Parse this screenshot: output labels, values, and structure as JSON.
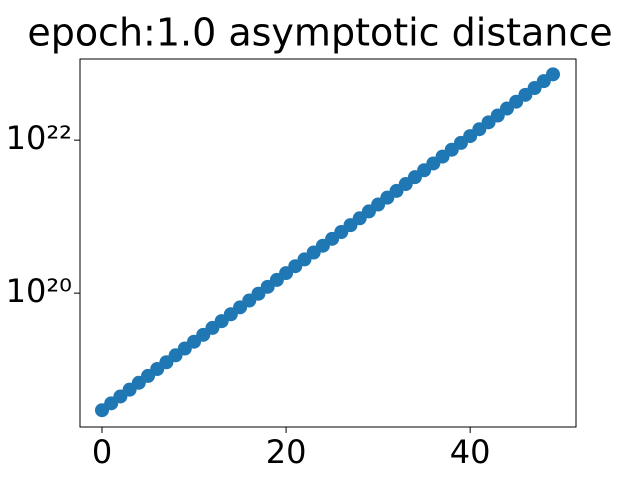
{
  "chart_data": {
    "type": "scatter",
    "title": "epoch:1.0 asymptotic distance",
    "x": [
      0,
      1,
      2,
      3,
      4,
      5,
      6,
      7,
      8,
      9,
      10,
      11,
      12,
      13,
      14,
      15,
      16,
      17,
      18,
      19,
      20,
      21,
      22,
      23,
      24,
      25,
      26,
      27,
      28,
      29,
      30,
      31,
      32,
      33,
      34,
      35,
      36,
      37,
      38,
      39,
      40,
      41,
      42,
      43,
      44,
      45,
      46,
      47,
      48,
      49
    ],
    "series": [
      {
        "name": "distance",
        "color": "#1f77b4",
        "values": [
          2.95e+18,
          3.63e+18,
          4.46e+18,
          5.48e+18,
          6.74e+18,
          8.28e+18,
          1.02e+19,
          1.25e+19,
          1.54e+19,
          1.89e+19,
          2.32e+19,
          2.85e+19,
          3.51e+19,
          4.31e+19,
          5.3e+19,
          6.52e+19,
          8.01e+19,
          9.84e+19,
          1.21e+20,
          1.49e+20,
          1.83e+20,
          2.25e+20,
          2.76e+20,
          3.4e+20,
          4.17e+20,
          5.13e+20,
          6.3e+20,
          7.75e+20,
          9.52e+20,
          1.17e+21,
          1.44e+21,
          1.77e+21,
          2.17e+21,
          2.67e+21,
          3.28e+21,
          4.04e+21,
          4.96e+21,
          6.1e+21,
          7.5e+21,
          9.21e+21,
          1.13e+22,
          1.39e+22,
          1.71e+22,
          2.1e+22,
          2.59e+22,
          3.18e+22,
          3.91e+22,
          4.8e+22,
          5.9e+22,
          7.25e+22
        ]
      }
    ],
    "xlim": [
      -2.39,
      51.5
    ],
    "xticks": [
      0,
      20,
      40
    ],
    "ylim": [
      1.78e+18,
      1.15e+23
    ],
    "yscale": "log",
    "yticks": [
      {
        "value": 1e+20,
        "label": "10²⁰"
      },
      {
        "value": 1e+22,
        "label": "10²²"
      }
    ]
  }
}
